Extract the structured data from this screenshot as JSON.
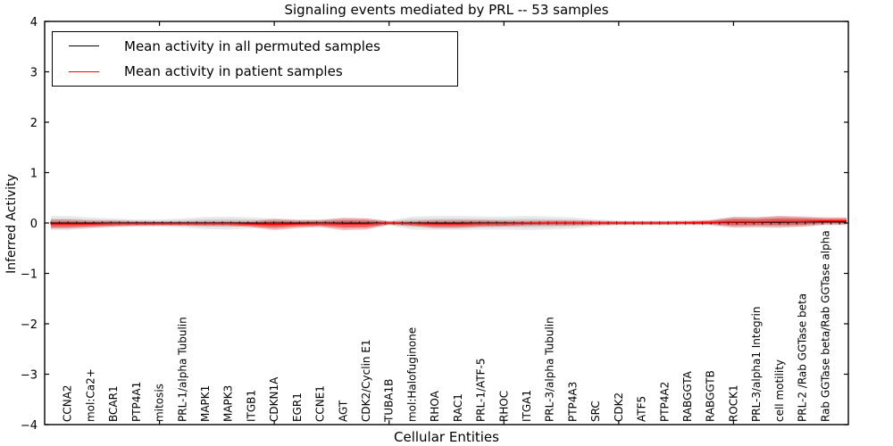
{
  "page": {
    "title": "Signaling events mediated by PRL -- 53 samples"
  },
  "legend": {
    "items": [
      {
        "label": "Mean activity in all permuted samples",
        "color": "#000000"
      },
      {
        "label": "Mean activity in patient samples",
        "color": "#ff0000"
      }
    ]
  },
  "chart_data": {
    "type": "area",
    "title": "Signaling events mediated by PRL -- 53 samples",
    "xlabel": "Cellular Entities",
    "ylabel": "Inferred Activity",
    "ylim": [
      -4,
      4
    ],
    "yticks": [
      "4",
      "3",
      "2",
      "1",
      "0",
      "−1",
      "−2",
      "−3",
      "−4"
    ],
    "ytick_values": [
      4,
      3,
      2,
      1,
      0,
      -1,
      -2,
      -3,
      -4
    ],
    "xlim": [
      0,
      35
    ],
    "xticks": [
      5,
      10,
      15,
      20,
      25,
      30
    ],
    "grid": false,
    "legend_position": "upper left",
    "categories": [
      "CCNA2",
      "mol:Ca2+",
      "BCAR1",
      "PTP4A1",
      "mitosis",
      "PRL-1/alpha Tubulin",
      "MAPK1",
      "MAPK3",
      "ITGB1",
      "CDKN1A",
      "EGR1",
      "CCNE1",
      "AGT",
      "CDK2/Cyclin E1",
      "TUBA1B",
      "mol:Halofuginone",
      "RHOA",
      "RAC1",
      "PRL-1/ATF-5",
      "RHOC",
      "ITGA1",
      "PRL-3/alpha Tubulin",
      "PTP4A3",
      "SRC",
      "CDK2",
      "ATF5",
      "PTP4A2",
      "RABGGTA",
      "RABGGTB",
      "ROCK1",
      "PRL-3/alpha1 Integrin",
      "cell motility",
      "PRL-2 /Rab GGTase beta",
      "Rab GGTase beta/Rab GGTase alpha"
    ],
    "series": [
      {
        "name": "Mean activity in all permuted samples",
        "color": "#000000",
        "band_color": "#999999",
        "mean": [
          0,
          0,
          0,
          0,
          0,
          0,
          0,
          0,
          0,
          0,
          0,
          0,
          0,
          0,
          0,
          0,
          0,
          0,
          0,
          0,
          0,
          0,
          0,
          0,
          0,
          0,
          0,
          0,
          0.005,
          0.01,
          0.01,
          0.015,
          0.02,
          0.02
        ],
        "band_halfwidth": [
          0.14,
          0.11,
          0.09,
          0.07,
          0.07,
          0.09,
          0.12,
          0.13,
          0.11,
          0.09,
          0.07,
          0.07,
          0.09,
          0.09,
          0.05,
          0.13,
          0.14,
          0.14,
          0.13,
          0.13,
          0.14,
          0.13,
          0.11,
          0.07,
          0.05,
          0.05,
          0.05,
          0.05,
          0.06,
          0.11,
          0.11,
          0.12,
          0.09,
          0.07
        ]
      },
      {
        "name": "Mean activity in patient samples",
        "color": "#ff0000",
        "band_color": "#dd2222",
        "mean": [
          -0.02,
          -0.02,
          -0.01,
          -0.01,
          -0.01,
          -0.01,
          -0.01,
          -0.01,
          -0.02,
          -0.03,
          -0.02,
          -0.01,
          -0.02,
          -0.02,
          0,
          -0.01,
          -0.02,
          -0.02,
          -0.01,
          -0.01,
          -0.005,
          0,
          0,
          0,
          0,
          0,
          0,
          0.005,
          0.01,
          0.02,
          0.02,
          0.03,
          0.03,
          0.04
        ],
        "band_halfwidth": [
          0.09,
          0.07,
          0.06,
          0.05,
          0.045,
          0.045,
          0.05,
          0.05,
          0.06,
          0.11,
          0.08,
          0.07,
          0.12,
          0.11,
          0.035,
          0.05,
          0.08,
          0.08,
          0.07,
          0.06,
          0.05,
          0.05,
          0.05,
          0.045,
          0.035,
          0.035,
          0.035,
          0.035,
          0.045,
          0.1,
          0.09,
          0.11,
          0.1,
          0.07
        ]
      }
    ]
  }
}
